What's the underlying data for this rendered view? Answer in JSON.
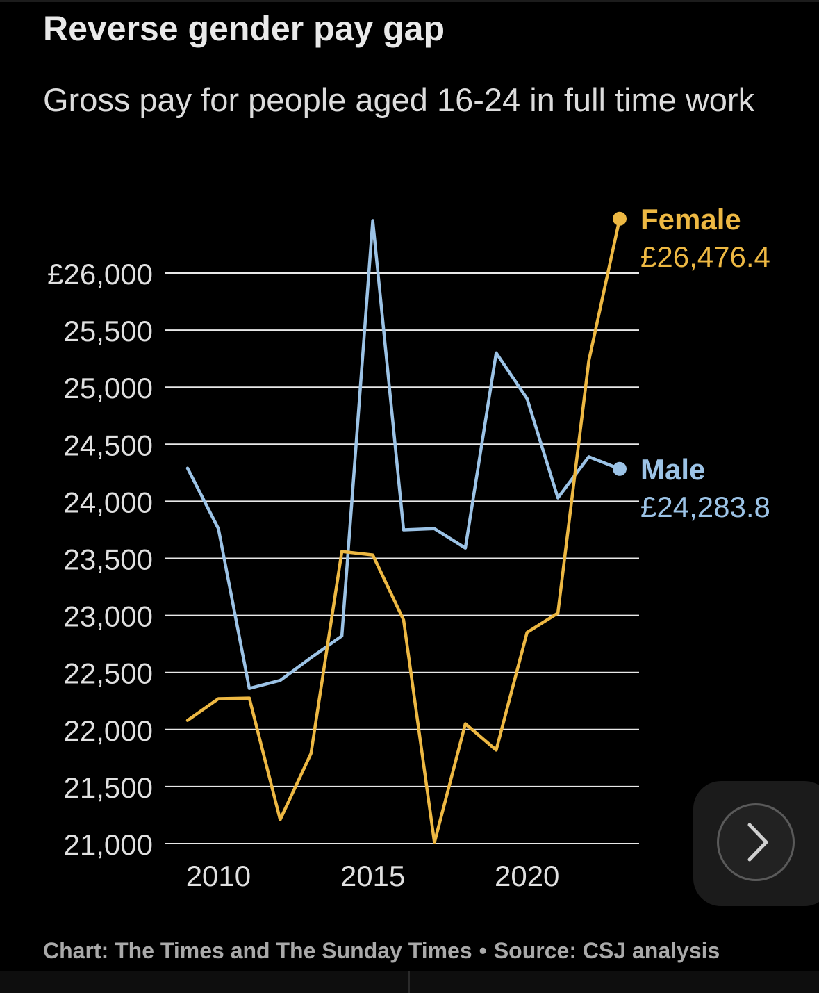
{
  "header": {
    "title": "Reverse gender pay gap",
    "subtitle": "Gross pay for people aged 16-24 in full time work"
  },
  "footer": {
    "credit": "Chart: The Times and The Sunday Times",
    "separator": "•",
    "source": "Source: CSJ analysis"
  },
  "navigation": {
    "next_icon": "chevron-right-icon"
  },
  "colors": {
    "background": "#000000",
    "female": "#EDB843",
    "male": "#9CC3E6",
    "grid": "#E8E8E8",
    "tick_text": "#E0E0E0"
  },
  "chart_data": {
    "type": "line",
    "title": "Reverse gender pay gap",
    "subtitle": "Gross pay for people aged 16-24 in full time work",
    "x": [
      2009,
      2010,
      2011,
      2012,
      2013,
      2014,
      2015,
      2016,
      2017,
      2018,
      2019,
      2020,
      2021,
      2022,
      2023
    ],
    "x_ticks": [
      2010,
      2015,
      2020
    ],
    "x_tick_labels": [
      "2010",
      "2015",
      "2020"
    ],
    "y_ticks": [
      21000,
      21500,
      22000,
      22500,
      23000,
      23500,
      24000,
      24500,
      25000,
      25500,
      26000
    ],
    "y_tick_labels": [
      "21,000",
      "21,500",
      "22,000",
      "22,500",
      "23,000",
      "23,500",
      "24,000",
      "24,500",
      "25,000",
      "25,500",
      "£26,000"
    ],
    "ylim": [
      21000,
      26000
    ],
    "xlim": [
      2009,
      2023
    ],
    "grid": "horizontal",
    "legend": "end-labels",
    "series": [
      {
        "name": "Female",
        "end_label": "£26,476.4",
        "color": "#EDB843",
        "values": [
          22080,
          22270,
          22275,
          21210,
          21790,
          23560,
          23530,
          22960,
          21010,
          22050,
          21820,
          22850,
          23020,
          25230,
          26476.4
        ]
      },
      {
        "name": "Male",
        "end_label": "£24,283.8",
        "color": "#9CC3E6",
        "values": [
          24290,
          23760,
          22360,
          22430,
          22630,
          22820,
          26460,
          23750,
          23760,
          23590,
          25300,
          24900,
          24030,
          24390,
          24283.8
        ]
      }
    ]
  }
}
